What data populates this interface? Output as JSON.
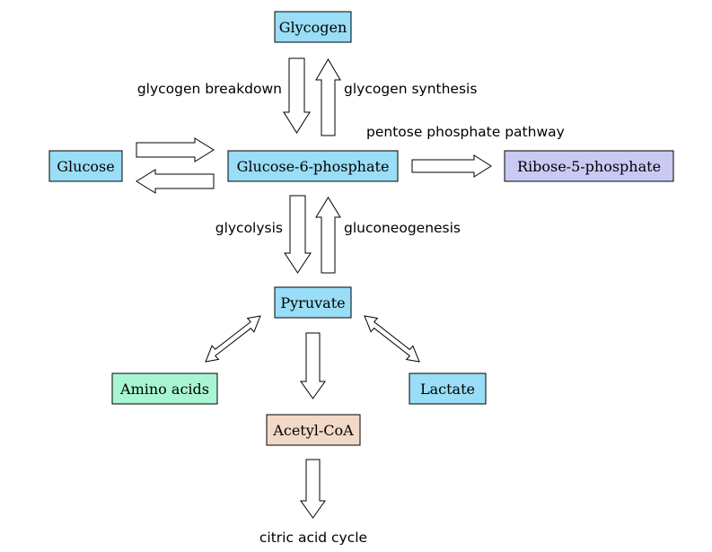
{
  "colors": {
    "blue": "#99ddf6",
    "lavender": "#c9c9f4",
    "mint": "#a7f5d3",
    "peach": "#f2d8c7"
  },
  "nodes": {
    "glycogen": "Glycogen",
    "glucose": "Glucose",
    "g6p": "Glucose-6-phosphate",
    "r5p": "Ribose-5-phosphate",
    "pyruvate": "Pyruvate",
    "amino": "Amino acids",
    "lactate": "Lactate",
    "acetyl": "Acetyl-CoA"
  },
  "labels": {
    "breakdown": "glycogen breakdown",
    "synthesis": "glycogen synthesis",
    "ppp": "pentose phosphate pathway",
    "glycolysis": "glycolysis",
    "gluconeogenesis": "gluconeogenesis",
    "tca": "citric acid cycle"
  }
}
